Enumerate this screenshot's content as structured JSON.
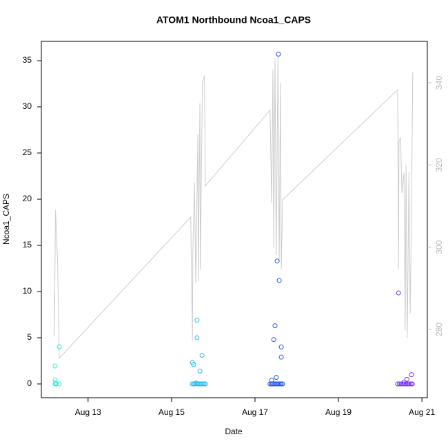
{
  "chart_data": {
    "type": "scatter",
    "title": "ATOM1 Northbound Ncoa1_CAPS",
    "xlabel": "Date",
    "ylabel": "Ncoa1_CAPS",
    "xlim": [
      11.88,
      21.13
    ],
    "xticks": [
      {
        "value": 13,
        "label": "Aug 13"
      },
      {
        "value": 15,
        "label": "Aug 15"
      },
      {
        "value": 17,
        "label": "Aug 17"
      },
      {
        "value": 19,
        "label": "Aug 19"
      },
      {
        "value": 21,
        "label": "Aug 21"
      }
    ],
    "ylim": [
      -1.49,
      37.09
    ],
    "yticks": [
      0,
      5,
      10,
      15,
      20,
      25,
      30,
      35
    ],
    "y2lim": [
      263.4,
      350.05
    ],
    "y2ticks": [
      280,
      300,
      320,
      340
    ],
    "y2color": "#bbbbbb",
    "series": [
      {
        "kind": "line",
        "axis": "y2",
        "color": "#cccccc",
        "x": [
          12.19,
          12.19,
          12.22,
          12.27,
          12.31,
          15.46,
          15.5,
          15.51,
          15.55,
          15.58,
          15.63,
          15.64,
          15.68,
          15.69,
          15.74,
          15.79,
          15.81,
          17.36,
          17.4,
          17.43,
          17.45,
          17.48,
          17.51,
          17.55,
          17.58,
          17.61,
          17.63,
          17.66,
          20.42,
          20.44,
          20.45,
          20.49,
          20.52,
          20.57,
          20.6,
          20.62,
          20.65,
          20.69,
          20.72,
          20.75,
          20.78
        ],
        "values": [
          288.4,
          278.3,
          309.0,
          296.4,
          273.0,
          307.3,
          277.2,
          298.6,
          315.7,
          291.4,
          327.4,
          291.7,
          335.0,
          294.7,
          340.0,
          341.7,
          314.9,
          333.3,
          310.7,
          343.3,
          299.8,
          345.9,
          298.1,
          346.7,
          296.4,
          340.0,
          294.7,
          311.5,
          338.3,
          294.7,
          325.8,
          326.6,
          313.2,
          318.2,
          279.7,
          319.9,
          278.0,
          318.2,
          283.9,
          308.2,
          342.5
        ]
      },
      {
        "kind": "points",
        "color": "#33eecc",
        "x": [
          12.21,
          12.21,
          12.31,
          12.21,
          12.24,
          12.31,
          12.22
        ],
        "values": [
          1.94,
          0.45,
          4.03,
          0,
          0,
          0,
          0.1
        ]
      },
      {
        "kind": "points",
        "color": "#22bbee",
        "x": [
          15.5,
          15.53,
          15.61,
          15.61,
          15.73,
          15.68,
          15.5,
          15.53,
          15.56,
          15.59,
          15.62,
          15.65,
          15.68,
          15.71,
          15.75,
          15.78,
          15.81
        ],
        "values": [
          2.3,
          2.1,
          6.9,
          5.0,
          3.1,
          1.4,
          0,
          0,
          0,
          0.1,
          0,
          0,
          0,
          0,
          0,
          0,
          0
        ]
      },
      {
        "kind": "points",
        "color": "#2255ee",
        "x": [
          17.56,
          17.53,
          17.58,
          17.48,
          17.45,
          17.63,
          17.63,
          17.51,
          17.4,
          17.36,
          17.39,
          17.42,
          17.45,
          17.48,
          17.51,
          17.54,
          17.57,
          17.6,
          17.63,
          17.66
        ],
        "values": [
          35.7,
          13.3,
          11.2,
          6.3,
          4.8,
          4.0,
          2.9,
          0.7,
          0.4,
          0,
          0,
          0,
          0,
          0,
          0,
          0,
          0,
          0,
          0,
          0
        ]
      },
      {
        "kind": "points",
        "color": "#7733ee",
        "x": [
          20.44,
          20.75,
          20.64,
          20.57,
          20.42,
          20.46,
          20.5,
          20.54,
          20.58,
          20.62,
          20.66,
          20.7,
          20.74,
          20.77
        ],
        "values": [
          9.85,
          1.0,
          0.5,
          0.2,
          0,
          0,
          0,
          0,
          0,
          0,
          0,
          0,
          0,
          0
        ]
      }
    ]
  }
}
